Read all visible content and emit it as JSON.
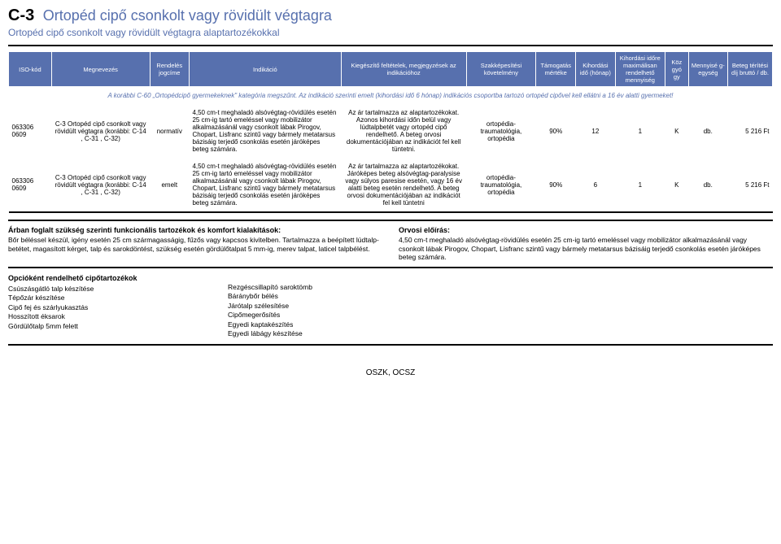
{
  "header": {
    "code": "C-3",
    "title": "Ortopéd cipő csonkolt vagy rövidült végtagra",
    "subtitle": "Ortopéd cipő csonkolt vagy rövidült végtagra alaptartozékokkal"
  },
  "table": {
    "columns": [
      "ISO-kód",
      "Megnevezés",
      "Rendelés jogcíme",
      "Indikáció",
      "Kiegészítő feltételek, megjegyzések az indikációhoz",
      "Szakképesítési követelmény",
      "Támogatás mértéke",
      "Kihordási idő (hónap)",
      "Kihordási időre maximálisan rendelhető mennyiség",
      "Köz gyó gy",
      "Mennyisé g-egység",
      "Beteg térítési díj bruttó / db."
    ],
    "col_widths": [
      "48px",
      "110px",
      "44px",
      "170px",
      "140px",
      "78px",
      "44px",
      "44px",
      "56px",
      "26px",
      "44px",
      "50px"
    ],
    "note": "A korábbi C-60 „Ortopédcipő gyermekeknek\" kategória megszűnt. Az indikáció szerinti emelt (kihordási idő 6 hónap) indikációs csoportba tartozó ortopéd cipővel kell ellátni a 16 év alatti gyermeket!",
    "rows": [
      {
        "iso": "063306 0609",
        "name": "C-3 Ortopéd cipő csonkolt vagy rövidült végtagra (korábbi: C-14 , C-31 , C-32)",
        "jogcim": "normatív",
        "indikacio": "4,50 cm-t meghaladó alsóvégtag-rövidülés esetén 25 cm-ig tartó emeléssel vagy mobilizátor alkalmazásánál vagy csonkolt lábak Pirogov, Chopart, Lisfranc szintű vagy bármely metatarsus bázisáig terjedő csonkolás esetén járóképes beteg számára.",
        "feltetelek": "Az ár tartalmazza az alaptartozékokat. Azonos kihordási időn belül vagy lúdtalpbetét vagy ortopéd cipő rendelhető. A beteg orvosi dokumentációjában az indikációt fel kell tüntetni.",
        "szakkepes": "ortopédia-traumatológia, ortopédia",
        "tamogatas": "90%",
        "kihordas": "12",
        "max_menny": "1",
        "kozgyogy": "K",
        "egyseg": "db.",
        "dij": "5 216 Ft"
      },
      {
        "iso": "063306 0609",
        "name": "C-3 Ortopéd cipő csonkolt vagy rövidült végtagra (korábbi: C-14 , C-31 , C-32)",
        "jogcim": "emelt",
        "indikacio": "4,50 cm-t meghaladó alsóvégtag-rövidülés esetén 25 cm-ig tartó emeléssel vagy mobilizátor alkalmazásánál vagy csonkolt lábak Pirogov, Chopart, Lisfranc szintű vagy bármely metatarsus bázisáig terjedő csonkolás esetén járóképes beteg számára.",
        "feltetelek": "Az ár tartalmazza az alaptartozékokat. Járóképes beteg alsóvégtag-paralysise vagy súlyos paresise esetén, vagy 16 év alatti beteg esetén rendelhető. A beteg orvosi dokumentációjában az indikációt fel kell tüntetni",
        "szakkepes": "ortopédia-traumatológia, ortopédia",
        "tamogatas": "90%",
        "kihordas": "6",
        "max_menny": "1",
        "kozgyogy": "K",
        "egyseg": "db.",
        "dij": "5 216 Ft"
      }
    ]
  },
  "block_left": {
    "heading": "Árban foglalt szükség szerinti funkcionális tartozékok és komfort kialakítások:",
    "text": "Bőr béléssel készül, igény esetén 25 cm szármagasságig, fűzős vagy kapcsos kivitelben. Tartalmazza a beépített lúdtalp-betétet, magasított kérget, talp és sarokdöntést, szükség esetén gördülőtalpat 5 mm-ig, merev talpat, laticel talpbélést."
  },
  "block_right": {
    "heading": "Orvosi előírás:",
    "text": "4,50 cm-t meghaladó alsóvégtag-rövidülés esetén 25 cm-ig tartó emeléssel vagy mobilizátor alkalmazásánál vagy csonkolt lábak Pirogov, Chopart, Lisfranc szintű vagy bármely metatarsus bázisáig terjedő csonkolás esetén járóképes beteg számára."
  },
  "options": {
    "left_heading": "Opcióként rendelhető cipőtartozékok",
    "left_items": [
      "Csúszásgátló talp készítése",
      "Tépőzár készítése",
      "Cipő fej és szárlyukasztás",
      "Hosszított éksarok",
      "Gördülőtalp 5mm felett"
    ],
    "right_items": [
      "Rezgéscsillapító saroktömb",
      "Báránybőr bélés",
      "Járótalp szélesítése",
      "Cipőmegerősítés",
      "Egyedi kaptakészítés",
      "Egyedi lábágy készítése"
    ]
  },
  "footer": "OSZK, OCSZ"
}
